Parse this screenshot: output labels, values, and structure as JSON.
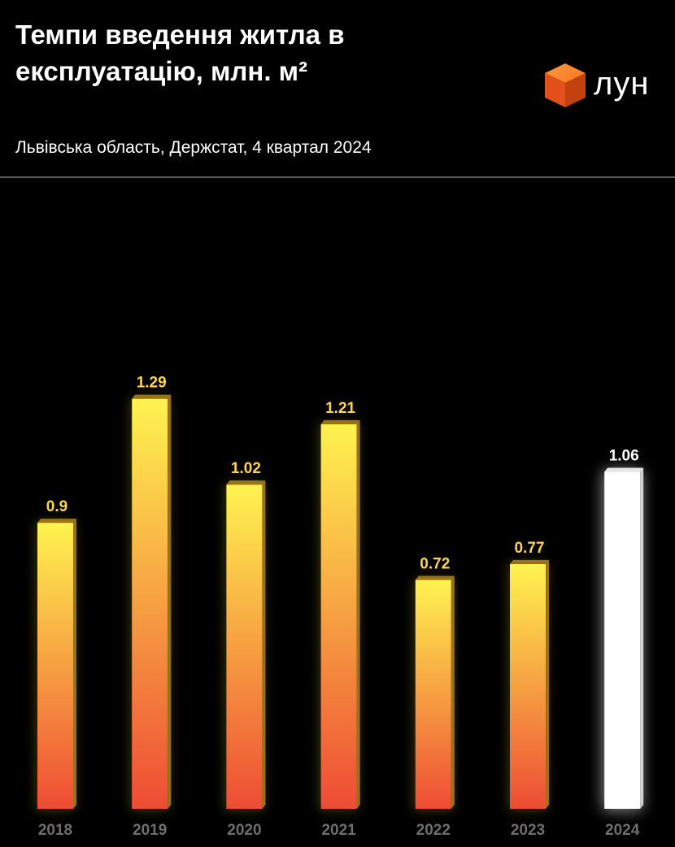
{
  "header": {
    "title": "Темпи введення житла в експлуатацію, млн. м²",
    "subtitle": "Львівська область, Держстат, 4 квартал 2024"
  },
  "logo": {
    "text": "лун",
    "icon": "orange-cube-icon"
  },
  "colors": {
    "background": "#000000",
    "bar_top": "#FFF350",
    "bar_bottom": "#EE4C34",
    "bar_side": "#9A7414",
    "highlight_bar": "#FFFFFF",
    "value_label": "#FFD54A",
    "highlight_label": "#FFFFFF",
    "axis_label": "#6E6E6E",
    "divider": "#5A5A5A",
    "logo_orange": "#F26522"
  },
  "chart_data": {
    "type": "bar",
    "title": "Темпи введення житла в експлуатацію, млн. м²",
    "subtitle": "Львівська область, Держстат, 4 квартал 2024",
    "categories": [
      "2018",
      "2019",
      "2020",
      "2021",
      "2022",
      "2023",
      "2024"
    ],
    "values": [
      0.9,
      1.29,
      1.02,
      1.21,
      0.72,
      0.77,
      1.06
    ],
    "value_labels": [
      "0.9",
      "1.29",
      "1.02",
      "1.21",
      "0.72",
      "0.77",
      "1.06"
    ],
    "highlighted_category": "2024",
    "xlabel": "",
    "ylabel": "",
    "ylim": [
      0,
      1.4
    ],
    "grid": false,
    "legend": "none"
  }
}
